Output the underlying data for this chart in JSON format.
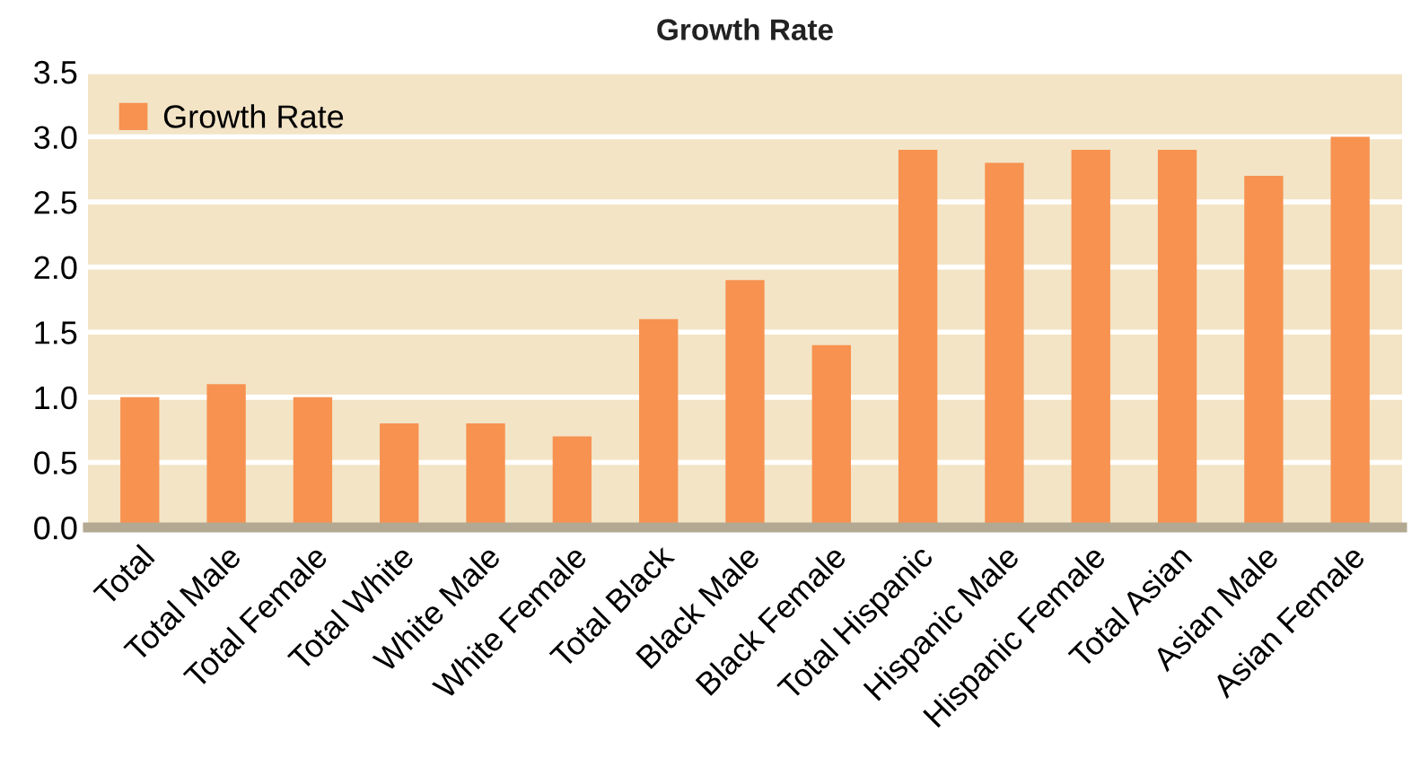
{
  "chart_data": {
    "type": "bar",
    "title": "Growth Rate",
    "categories": [
      "Total",
      "Total Male",
      "Total Female",
      "Total White",
      "White Male",
      "White Female",
      "Total Black",
      "Black Male",
      "Black Female",
      "Total Hispanic",
      "Hispanic Male",
      "Hispanic Female",
      "Total Asian",
      "Asian Male",
      "Asian Female"
    ],
    "series": [
      {
        "name": "Growth Rate",
        "color": "#f79250",
        "values": [
          1.0,
          1.1,
          1.0,
          0.8,
          0.8,
          0.7,
          1.6,
          1.9,
          1.4,
          2.9,
          2.8,
          2.9,
          2.9,
          2.7,
          3.0
        ]
      }
    ],
    "ylim": [
      0,
      3.5
    ],
    "yticks": [
      {
        "value": 0,
        "label": "0.0"
      },
      {
        "value": 0.5,
        "label": "0.5"
      },
      {
        "value": 1,
        "label": "1.0"
      },
      {
        "value": 1.5,
        "label": "1.5"
      },
      {
        "value": 2,
        "label": "2.0"
      },
      {
        "value": 2.5,
        "label": "2.5"
      },
      {
        "value": 3,
        "label": "3.0"
      },
      {
        "value": 3.5,
        "label": "3.5"
      }
    ],
    "grid": "y",
    "legend": "top left"
  }
}
